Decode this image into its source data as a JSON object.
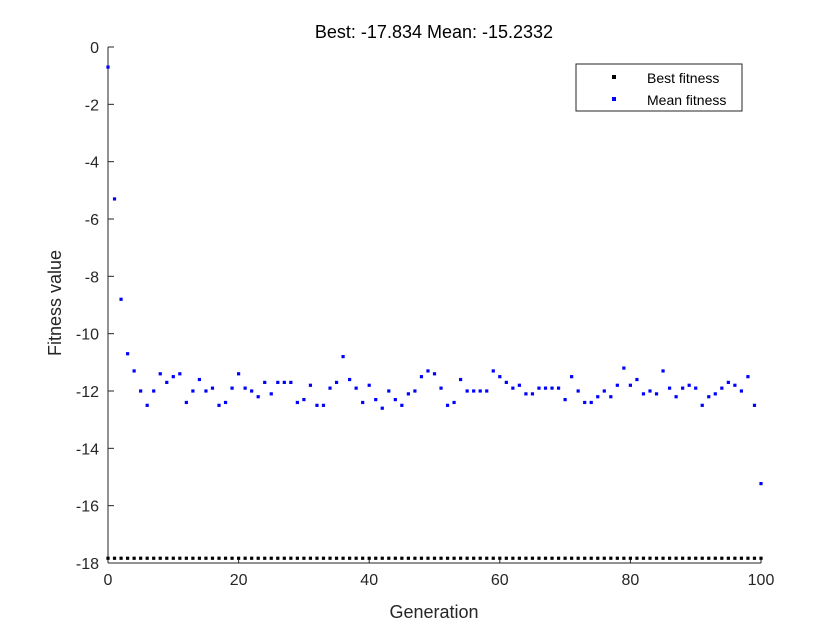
{
  "chart_data": {
    "type": "scatter",
    "title": "Best: -17.834 Mean: -15.2332",
    "xlabel": "Generation",
    "ylabel": "Fitness value",
    "xlim": [
      0,
      100
    ],
    "ylim": [
      -18,
      0
    ],
    "xticks": [
      0,
      20,
      40,
      60,
      80,
      100
    ],
    "yticks": [
      0,
      -2,
      -4,
      -6,
      -8,
      -10,
      -12,
      -14,
      -16,
      -18
    ],
    "grid": false,
    "legend_position": "top-right",
    "colors": {
      "best": "#000000",
      "mean": "#0000ff",
      "axis": "#262626"
    },
    "series": [
      {
        "name": "Best fitness",
        "key": "best",
        "x": [
          0,
          1,
          2,
          3,
          4,
          5,
          6,
          7,
          8,
          9,
          10,
          11,
          12,
          13,
          14,
          15,
          16,
          17,
          18,
          19,
          20,
          21,
          22,
          23,
          24,
          25,
          26,
          27,
          28,
          29,
          30,
          31,
          32,
          33,
          34,
          35,
          36,
          37,
          38,
          39,
          40,
          41,
          42,
          43,
          44,
          45,
          46,
          47,
          48,
          49,
          50,
          51,
          52,
          53,
          54,
          55,
          56,
          57,
          58,
          59,
          60,
          61,
          62,
          63,
          64,
          65,
          66,
          67,
          68,
          69,
          70,
          71,
          72,
          73,
          74,
          75,
          76,
          77,
          78,
          79,
          80,
          81,
          82,
          83,
          84,
          85,
          86,
          87,
          88,
          89,
          90,
          91,
          92,
          93,
          94,
          95,
          96,
          97,
          98,
          99,
          100
        ],
        "y": [
          -17.834,
          -17.834,
          -17.834,
          -17.834,
          -17.834,
          -17.834,
          -17.834,
          -17.834,
          -17.834,
          -17.834,
          -17.834,
          -17.834,
          -17.834,
          -17.834,
          -17.834,
          -17.834,
          -17.834,
          -17.834,
          -17.834,
          -17.834,
          -17.834,
          -17.834,
          -17.834,
          -17.834,
          -17.834,
          -17.834,
          -17.834,
          -17.834,
          -17.834,
          -17.834,
          -17.834,
          -17.834,
          -17.834,
          -17.834,
          -17.834,
          -17.834,
          -17.834,
          -17.834,
          -17.834,
          -17.834,
          -17.834,
          -17.834,
          -17.834,
          -17.834,
          -17.834,
          -17.834,
          -17.834,
          -17.834,
          -17.834,
          -17.834,
          -17.834,
          -17.834,
          -17.834,
          -17.834,
          -17.834,
          -17.834,
          -17.834,
          -17.834,
          -17.834,
          -17.834,
          -17.834,
          -17.834,
          -17.834,
          -17.834,
          -17.834,
          -17.834,
          -17.834,
          -17.834,
          -17.834,
          -17.834,
          -17.834,
          -17.834,
          -17.834,
          -17.834,
          -17.834,
          -17.834,
          -17.834,
          -17.834,
          -17.834,
          -17.834,
          -17.834,
          -17.834,
          -17.834,
          -17.834,
          -17.834,
          -17.834,
          -17.834,
          -17.834,
          -17.834,
          -17.834,
          -17.834,
          -17.834,
          -17.834,
          -17.834,
          -17.834,
          -17.834,
          -17.834,
          -17.834,
          -17.834,
          -17.834,
          -17.834
        ]
      },
      {
        "name": "Mean fitness",
        "key": "mean",
        "x": [
          0,
          1,
          2,
          3,
          4,
          5,
          6,
          7,
          8,
          9,
          10,
          11,
          12,
          13,
          14,
          15,
          16,
          17,
          18,
          19,
          20,
          21,
          22,
          23,
          24,
          25,
          26,
          27,
          28,
          29,
          30,
          31,
          32,
          33,
          34,
          35,
          36,
          37,
          38,
          39,
          40,
          41,
          42,
          43,
          44,
          45,
          46,
          47,
          48,
          49,
          50,
          51,
          52,
          53,
          54,
          55,
          56,
          57,
          58,
          59,
          60,
          61,
          62,
          63,
          64,
          65,
          66,
          67,
          68,
          69,
          70,
          71,
          72,
          73,
          74,
          75,
          76,
          77,
          78,
          79,
          80,
          81,
          82,
          83,
          84,
          85,
          86,
          87,
          88,
          89,
          90,
          91,
          92,
          93,
          94,
          95,
          96,
          97,
          98,
          99,
          100
        ],
        "y": [
          -0.7,
          -5.3,
          -8.8,
          -10.7,
          -11.3,
          -12.0,
          -12.5,
          -12.0,
          -11.4,
          -11.7,
          -11.5,
          -11.4,
          -12.4,
          -12.0,
          -11.6,
          -12.0,
          -11.9,
          -12.5,
          -12.4,
          -11.9,
          -11.4,
          -11.9,
          -12.0,
          -12.2,
          -11.7,
          -12.1,
          -11.7,
          -11.7,
          -11.7,
          -12.4,
          -12.3,
          -11.8,
          -12.5,
          -12.5,
          -11.9,
          -11.7,
          -10.8,
          -11.6,
          -11.9,
          -12.4,
          -11.8,
          -12.3,
          -12.6,
          -12.0,
          -12.3,
          -12.5,
          -12.1,
          -12.0,
          -11.5,
          -11.3,
          -11.4,
          -11.9,
          -12.5,
          -12.4,
          -11.6,
          -12.0,
          -12.0,
          -12.0,
          -12.0,
          -11.3,
          -11.5,
          -11.7,
          -11.9,
          -11.8,
          -12.1,
          -12.1,
          -11.9,
          -11.9,
          -11.9,
          -11.9,
          -12.3,
          -11.5,
          -12.0,
          -12.4,
          -12.4,
          -12.2,
          -12.0,
          -12.2,
          -11.8,
          -11.2,
          -11.8,
          -11.6,
          -12.1,
          -12.0,
          -12.1,
          -11.3,
          -11.9,
          -12.2,
          -11.9,
          -11.8,
          -11.9,
          -12.5,
          -12.2,
          -12.1,
          -11.9,
          -11.7,
          -11.8,
          -12.0,
          -11.5,
          -12.5,
          -15.23
        ]
      }
    ]
  }
}
